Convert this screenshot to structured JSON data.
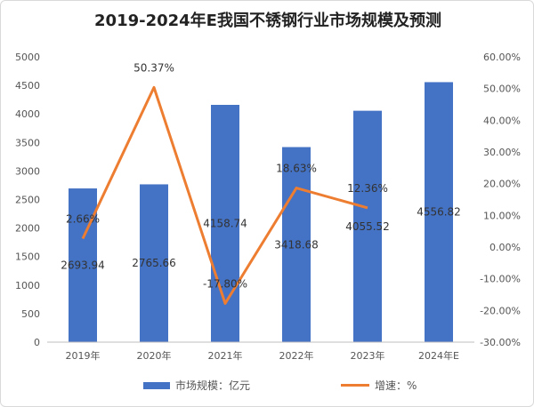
{
  "chart_data": {
    "type": "bar+line",
    "title": "2019-2024年E我国不锈钢行业市场规模及预测",
    "categories": [
      "2019年",
      "2020年",
      "2021年",
      "2022年",
      "2023年",
      "2024年E"
    ],
    "series": [
      {
        "name": "市场规模：亿元",
        "type": "bar",
        "axis": "left",
        "color": "#4472c4",
        "values": [
          2693.94,
          2765.66,
          4158.74,
          3418.68,
          4055.52,
          4556.82
        ],
        "labels": [
          "2693.94",
          "2765.66",
          "4158.74",
          "3418.68",
          "4055.52",
          "4556.82"
        ]
      },
      {
        "name": "增速：%",
        "type": "line",
        "axis": "right",
        "color": "#ed7d31",
        "values": [
          2.66,
          50.37,
          -17.8,
          18.63,
          12.36,
          null
        ],
        "labels": [
          "2.66%",
          "50.37%",
          "-17.80%",
          "18.63%",
          "12.36%",
          ""
        ]
      }
    ],
    "y_left": {
      "min": 0,
      "max": 5000,
      "ticks": [
        "0",
        "500",
        "1000",
        "1500",
        "2000",
        "2500",
        "3000",
        "3500",
        "4000",
        "4500",
        "5000"
      ]
    },
    "y_right": {
      "min": -30,
      "max": 60,
      "ticks": [
        "-30.00%",
        "-20.00%",
        "-10.00%",
        "0.00%",
        "10.00%",
        "20.00%",
        "30.00%",
        "40.00%",
        "50.00%",
        "60.00%"
      ]
    },
    "grid": false,
    "legend": "bottom"
  }
}
